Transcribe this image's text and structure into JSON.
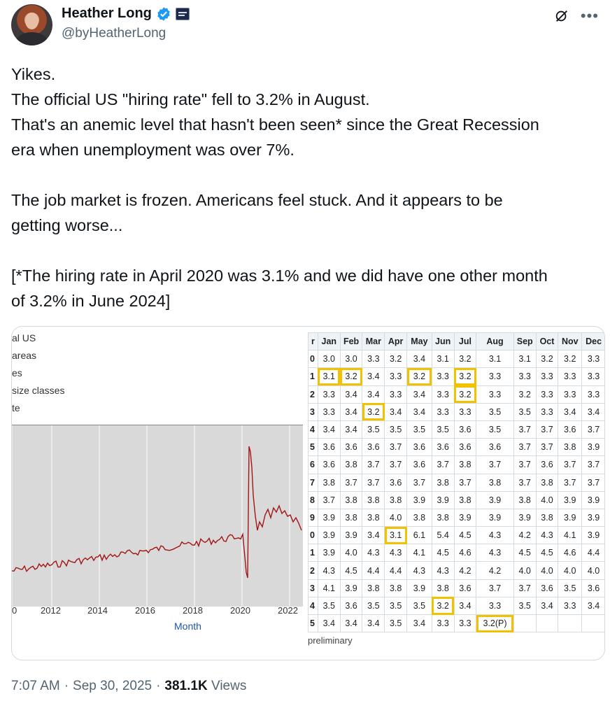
{
  "author": {
    "name": "Heather Long",
    "handle": "@byHeatherLong"
  },
  "tweet_lines": [
    "Yikes.",
    "The official US \"hiring rate\" fell to 3.2% in August.",
    "That's an anemic level that hasn't been seen* since the Great Recession",
    "era when unemployment was over 7%.",
    "",
    "The job market is frozen. Americans feel stuck. And it appears to be",
    "getting worse...",
    "",
    "[*The hiring rate in April 2020 was 3.1% and we did have one other month",
    "of 3.2% in June 2024]"
  ],
  "left_chart": {
    "legend": [
      "al US",
      "areas",
      "es",
      "size classes",
      "te"
    ],
    "x_ticks": [
      "0",
      "2012",
      "2014",
      "2016",
      "2018",
      "2020",
      "2022"
    ],
    "xlabel": "Month",
    "line_color": "#a31515"
  },
  "table": {
    "headers": [
      "r",
      "Jan",
      "Feb",
      "Mar",
      "Apr",
      "May",
      "Jun",
      "Jul",
      "Aug",
      "Sep",
      "Oct",
      "Nov",
      "Dec"
    ],
    "rows": [
      [
        "0",
        "3.0",
        "3.0",
        "3.3",
        "3.2",
        "3.4",
        "3.1",
        "3.2",
        "3.1",
        "3.1",
        "3.2",
        "3.2",
        "3.3"
      ],
      [
        "1",
        "3.1",
        "3.2",
        "3.4",
        "3.3",
        "3.2",
        "3.3",
        "3.2",
        "3.3",
        "3.3",
        "3.3",
        "3.3",
        "3.3"
      ],
      [
        "2",
        "3.3",
        "3.4",
        "3.4",
        "3.3",
        "3.4",
        "3.3",
        "3.2",
        "3.3",
        "3.2",
        "3.3",
        "3.3",
        "3.3"
      ],
      [
        "3",
        "3.3",
        "3.4",
        "3.2",
        "3.4",
        "3.4",
        "3.3",
        "3.3",
        "3.5",
        "3.5",
        "3.3",
        "3.4",
        "3.4"
      ],
      [
        "4",
        "3.4",
        "3.4",
        "3.5",
        "3.5",
        "3.5",
        "3.5",
        "3.6",
        "3.5",
        "3.7",
        "3.7",
        "3.6",
        "3.7"
      ],
      [
        "5",
        "3.6",
        "3.6",
        "3.6",
        "3.7",
        "3.6",
        "3.6",
        "3.6",
        "3.6",
        "3.7",
        "3.7",
        "3.8",
        "3.9"
      ],
      [
        "6",
        "3.6",
        "3.8",
        "3.7",
        "3.7",
        "3.6",
        "3.7",
        "3.8",
        "3.7",
        "3.7",
        "3.6",
        "3.7",
        "3.7"
      ],
      [
        "7",
        "3.8",
        "3.7",
        "3.7",
        "3.6",
        "3.7",
        "3.8",
        "3.7",
        "3.8",
        "3.7",
        "3.8",
        "3.7",
        "3.7"
      ],
      [
        "8",
        "3.7",
        "3.8",
        "3.8",
        "3.8",
        "3.9",
        "3.9",
        "3.8",
        "3.9",
        "3.8",
        "4.0",
        "3.9",
        "3.9"
      ],
      [
        "9",
        "3.9",
        "3.8",
        "3.8",
        "4.0",
        "3.8",
        "3.8",
        "3.9",
        "3.9",
        "3.9",
        "3.8",
        "3.9",
        "3.9"
      ],
      [
        "0",
        "3.9",
        "3.9",
        "3.4",
        "3.1",
        "6.1",
        "5.4",
        "4.5",
        "4.3",
        "4.2",
        "4.3",
        "4.1",
        "3.9"
      ],
      [
        "1",
        "3.9",
        "4.0",
        "4.3",
        "4.3",
        "4.1",
        "4.5",
        "4.6",
        "4.3",
        "4.5",
        "4.5",
        "4.6",
        "4.4"
      ],
      [
        "2",
        "4.3",
        "4.5",
        "4.4",
        "4.4",
        "4.3",
        "4.3",
        "4.2",
        "4.2",
        "4.0",
        "4.0",
        "4.0",
        "4.0"
      ],
      [
        "3",
        "4.1",
        "3.9",
        "3.8",
        "3.8",
        "3.9",
        "3.8",
        "3.6",
        "3.7",
        "3.7",
        "3.6",
        "3.5",
        "3.6"
      ],
      [
        "4",
        "3.5",
        "3.6",
        "3.5",
        "3.5",
        "3.5",
        "3.2",
        "3.4",
        "3.3",
        "3.5",
        "3.4",
        "3.3",
        "3.4"
      ],
      [
        "5",
        "3.4",
        "3.4",
        "3.4",
        "3.5",
        "3.4",
        "3.3",
        "3.3",
        "3.2(P)",
        "",
        "",
        "",
        ""
      ]
    ],
    "highlights": [
      [
        1,
        1
      ],
      [
        1,
        2
      ],
      [
        1,
        5
      ],
      [
        1,
        7
      ],
      [
        2,
        7
      ],
      [
        3,
        3
      ],
      [
        10,
        4
      ],
      [
        14,
        6
      ],
      [
        15,
        8
      ]
    ],
    "footnote": "preliminary",
    "highlight_color": "#f2c200"
  },
  "footer": {
    "time": "7:07 AM",
    "sep": "·",
    "date": "Sep 30, 2025",
    "views_count": "381.1K",
    "views_label": "Views"
  }
}
